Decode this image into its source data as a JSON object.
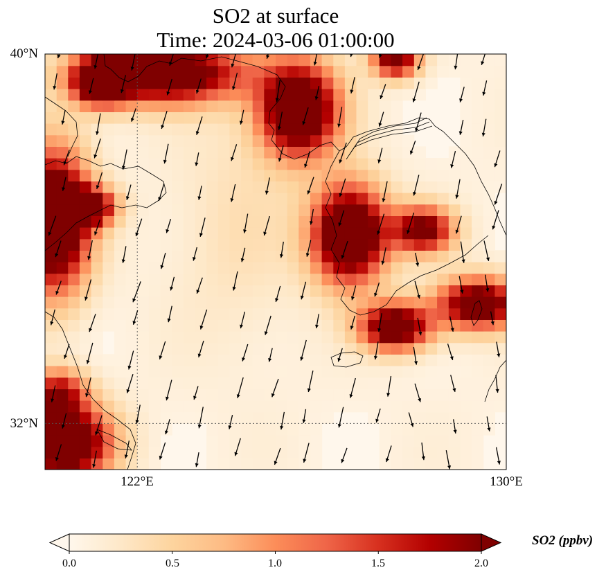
{
  "title": {
    "line1": "SO2 at surface",
    "line2": "Time: 2024-03-06 01:00:00"
  },
  "map": {
    "projection": "plate-carree",
    "lon_range": [
      120,
      130
    ],
    "lat_range": [
      31,
      40
    ],
    "gridlines": {
      "lon": [
        122
      ],
      "lat": [
        32
      ],
      "style": "dotted"
    },
    "y_ticks": [
      {
        "lat": 40,
        "label": "40°N"
      },
      {
        "lat": 32,
        "label": "32°N"
      }
    ],
    "x_ticks": [
      {
        "lon": 122,
        "label": "122°E"
      },
      {
        "lon": 130,
        "label": "130°E"
      }
    ],
    "field": "SO2 concentration (ppbv) with wind vectors",
    "hotspots_ppbv": [
      {
        "lon": 122.6,
        "lat": 39.6,
        "rx": 1.7,
        "ry": 0.65,
        "peak": 2.6
      },
      {
        "lon": 121.2,
        "lat": 39.4,
        "rx": 0.6,
        "ry": 0.5,
        "peak": 2.3
      },
      {
        "lon": 125.5,
        "lat": 38.8,
        "rx": 0.85,
        "ry": 1.0,
        "peak": 2.8
      },
      {
        "lon": 127.6,
        "lat": 39.9,
        "rx": 0.5,
        "ry": 0.4,
        "peak": 2.2
      },
      {
        "lon": 120.2,
        "lat": 36.4,
        "rx": 0.75,
        "ry": 1.5,
        "peak": 3.0
      },
      {
        "lon": 121.0,
        "lat": 36.7,
        "rx": 0.55,
        "ry": 0.4,
        "peak": 2.0
      },
      {
        "lon": 126.6,
        "lat": 36.1,
        "rx": 0.8,
        "ry": 1.05,
        "peak": 2.9
      },
      {
        "lon": 128.2,
        "lat": 36.2,
        "rx": 0.65,
        "ry": 0.5,
        "peak": 2.1
      },
      {
        "lon": 129.4,
        "lat": 34.6,
        "rx": 0.9,
        "ry": 0.55,
        "peak": 2.4
      },
      {
        "lon": 127.6,
        "lat": 34.1,
        "rx": 0.75,
        "ry": 0.5,
        "peak": 2.5
      },
      {
        "lon": 120.4,
        "lat": 31.6,
        "rx": 1.0,
        "ry": 0.8,
        "peak": 2.8
      },
      {
        "lon": 120.3,
        "lat": 32.7,
        "rx": 0.6,
        "ry": 0.5,
        "peak": 1.5
      },
      {
        "lon": 124.2,
        "lat": 36.3,
        "rx": 1.4,
        "ry": 2.5,
        "peak": 0.25
      }
    ],
    "wind": {
      "u_mps": -0.25,
      "v_mps": -1.0,
      "note": "predominantly northerly flow, arrows point south"
    }
  },
  "colorbar": {
    "label": "SO2 (ppbv)",
    "range": [
      0.0,
      2.0
    ],
    "extend": "both",
    "ticks": [
      "0.0",
      "0.5",
      "1.0",
      "1.5",
      "2.0"
    ],
    "colormap": "OrRd",
    "colors": [
      "#fff7ec",
      "#fee8c8",
      "#fdd49e",
      "#fdbb84",
      "#fc8d59",
      "#ef6548",
      "#d7301f",
      "#b30000",
      "#7f0000"
    ]
  }
}
